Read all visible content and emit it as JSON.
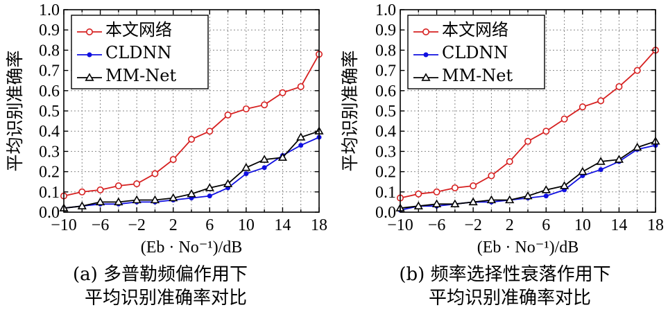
{
  "chart_data": [
    {
      "type": "line",
      "caption": [
        "(a) 多普勒频偏作用下",
        "平均识别准确率对比"
      ],
      "xlabel": "(Eb · No⁻¹)/dB",
      "ylabel": "平均识别准确率",
      "xlim": [
        -10,
        18
      ],
      "ylim": [
        0,
        1.0
      ],
      "x_ticks": [
        "−10",
        "−6",
        "−2",
        "2",
        "6",
        "10",
        "14",
        "18"
      ],
      "y_ticks": [
        "0.0",
        "0.1",
        "0.2",
        "0.3",
        "0.4",
        "0.5",
        "0.6",
        "0.7",
        "0.8",
        "0.9",
        "1.0"
      ],
      "grid": true,
      "legend_position": "top-left",
      "x": [
        -10,
        -8,
        -6,
        -4,
        -2,
        0,
        2,
        4,
        6,
        8,
        10,
        12,
        14,
        16,
        18
      ],
      "series": [
        {
          "name": "本文网络",
          "color": "#d62020",
          "marker": "circle",
          "values": [
            0.08,
            0.1,
            0.11,
            0.13,
            0.14,
            0.19,
            0.26,
            0.36,
            0.4,
            0.48,
            0.51,
            0.53,
            0.59,
            0.62,
            0.78
          ]
        },
        {
          "name": "CLDNN",
          "color": "#1010e0",
          "marker": "dot",
          "values": [
            0.02,
            0.03,
            0.04,
            0.04,
            0.05,
            0.05,
            0.06,
            0.07,
            0.08,
            0.12,
            0.19,
            0.22,
            0.28,
            0.33,
            0.37
          ]
        },
        {
          "name": "MM-Net",
          "color": "#000000",
          "marker": "triangle",
          "values": [
            0.02,
            0.03,
            0.05,
            0.05,
            0.06,
            0.06,
            0.07,
            0.09,
            0.12,
            0.14,
            0.22,
            0.26,
            0.27,
            0.37,
            0.4
          ]
        }
      ]
    },
    {
      "type": "line",
      "caption": [
        "(b) 频率选择性衰落作用下",
        "平均识别准确率对比"
      ],
      "xlabel": "(Eb · No⁻¹)/dB",
      "ylabel": "平均识别准确率",
      "xlim": [
        -10,
        18
      ],
      "ylim": [
        0,
        1.0
      ],
      "x_ticks": [
        "−10",
        "−6",
        "−2",
        "2",
        "6",
        "10",
        "14",
        "18"
      ],
      "y_ticks": [
        "0.0",
        "0.1",
        "0.2",
        "0.3",
        "0.4",
        "0.5",
        "0.6",
        "0.7",
        "0.8",
        "0.9",
        "1.0"
      ],
      "grid": true,
      "legend_position": "top-left",
      "x": [
        -10,
        -8,
        -6,
        -4,
        -2,
        0,
        2,
        4,
        6,
        8,
        10,
        12,
        14,
        16,
        18
      ],
      "series": [
        {
          "name": "本文网络",
          "color": "#d62020",
          "marker": "circle",
          "values": [
            0.07,
            0.09,
            0.1,
            0.12,
            0.13,
            0.18,
            0.25,
            0.35,
            0.4,
            0.46,
            0.52,
            0.55,
            0.62,
            0.7,
            0.8
          ]
        },
        {
          "name": "CLDNN",
          "color": "#1010e0",
          "marker": "dot",
          "values": [
            0.01,
            0.03,
            0.03,
            0.04,
            0.05,
            0.05,
            0.06,
            0.07,
            0.08,
            0.11,
            0.18,
            0.21,
            0.25,
            0.31,
            0.33
          ]
        },
        {
          "name": "MM-Net",
          "color": "#000000",
          "marker": "triangle",
          "values": [
            0.02,
            0.03,
            0.04,
            0.04,
            0.05,
            0.06,
            0.06,
            0.08,
            0.11,
            0.13,
            0.2,
            0.25,
            0.26,
            0.32,
            0.35
          ]
        }
      ]
    }
  ]
}
